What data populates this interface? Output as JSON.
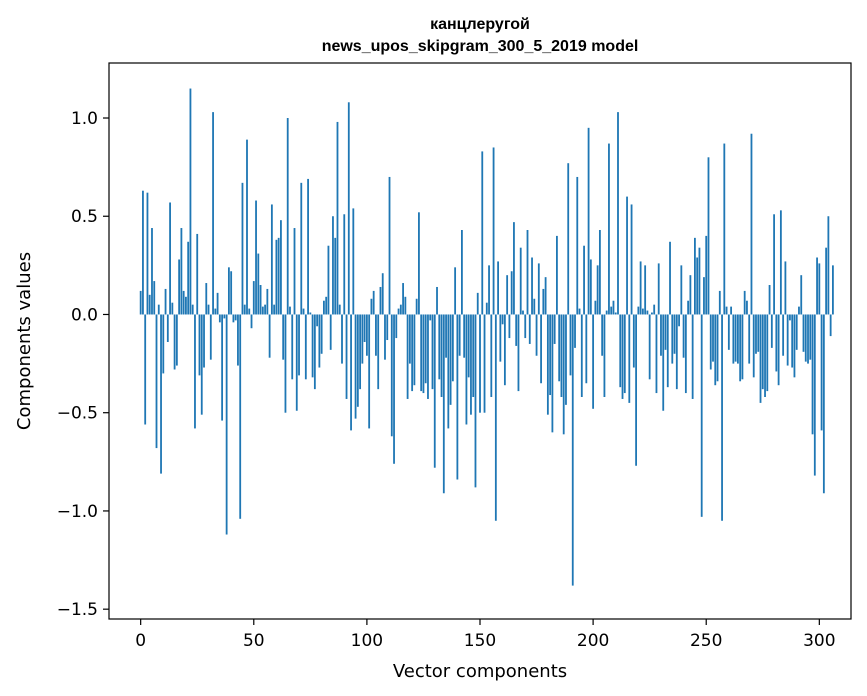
{
  "chart_data": {
    "type": "bar",
    "title": "канцлеругой",
    "subtitle": "news_upos_skipgram_300_5_2019 model",
    "xlabel": "Vector components",
    "ylabel": "Components values",
    "xlim": [
      -14,
      314
    ],
    "ylim": [
      -1.55,
      1.28
    ],
    "xticks": [
      0,
      50,
      100,
      150,
      200,
      250,
      300
    ],
    "yticks": [
      -1.5,
      -1.0,
      -0.5,
      0.0,
      0.5,
      1.0
    ],
    "ytick_labels": [
      "−1.5",
      "−1.0",
      "−0.5",
      "0.0",
      "0.5",
      "1.0"
    ],
    "grid": false,
    "bar_color": "#1f77b4",
    "values": [
      0.12,
      0.63,
      -0.56,
      0.62,
      0.1,
      0.44,
      0.17,
      -0.68,
      0.05,
      -0.81,
      -0.3,
      0.13,
      -0.14,
      0.57,
      0.06,
      -0.28,
      -0.26,
      0.28,
      0.44,
      0.12,
      0.09,
      0.37,
      1.15,
      0.05,
      -0.58,
      0.41,
      -0.31,
      -0.51,
      -0.27,
      0.16,
      0.05,
      -0.23,
      1.03,
      0.03,
      0.11,
      -0.04,
      -0.54,
      -0.02,
      -1.12,
      0.24,
      0.22,
      -0.04,
      -0.03,
      -0.26,
      -1.04,
      0.67,
      0.05,
      0.89,
      0.03,
      -0.07,
      0.17,
      0.58,
      0.31,
      0.15,
      0.04,
      0.05,
      0.13,
      -0.22,
      0.56,
      0.05,
      0.38,
      0.39,
      0.48,
      -0.23,
      -0.5,
      1.0,
      0.04,
      -0.33,
      0.44,
      -0.49,
      -0.31,
      0.67,
      0.03,
      -0.33,
      0.69,
      0.01,
      -0.32,
      -0.38,
      -0.06,
      -0.27,
      -0.2,
      0.07,
      0.09,
      0.35,
      -0.18,
      0.5,
      0.39,
      0.98,
      0.05,
      -0.25,
      0.51,
      -0.43,
      1.08,
      -0.59,
      0.54,
      -0.53,
      -0.47,
      -0.38,
      -0.25,
      -0.14,
      -0.21,
      -0.58,
      0.08,
      0.12,
      -0.21,
      -0.38,
      0.14,
      0.21,
      -0.23,
      -0.13,
      0.7,
      -0.62,
      -0.76,
      -0.12,
      0.03,
      0.05,
      0.16,
      0.09,
      -0.43,
      -0.25,
      -0.39,
      -0.36,
      0.08,
      0.52,
      -0.39,
      -0.4,
      -0.35,
      -0.43,
      -0.03,
      -0.38,
      -0.78,
      0.14,
      -0.33,
      -0.42,
      -0.91,
      -0.22,
      -0.58,
      -0.46,
      -0.34,
      0.24,
      -0.84,
      -0.21,
      0.43,
      -0.22,
      -0.56,
      -0.32,
      -0.51,
      -0.42,
      -0.88,
      0.11,
      -0.5,
      0.83,
      -0.5,
      0.06,
      0.25,
      -0.42,
      0.85,
      -1.05,
      0.27,
      -0.24,
      -0.05,
      -0.36,
      0.2,
      -0.12,
      0.22,
      0.47,
      -0.16,
      -0.39,
      0.34,
      0.02,
      -0.12,
      0.43,
      -0.15,
      0.29,
      0.08,
      -0.21,
      0.26,
      -0.35,
      0.13,
      0.19,
      -0.51,
      -0.41,
      -0.6,
      -0.15,
      0.4,
      -0.34,
      -0.42,
      -0.61,
      -0.46,
      0.77,
      -0.31,
      -1.38,
      -0.17,
      0.7,
      0.03,
      -0.42,
      0.35,
      -0.35,
      0.95,
      0.28,
      -0.48,
      0.07,
      0.25,
      0.43,
      -0.21,
      -0.42,
      0.02,
      0.87,
      0.04,
      0.07,
      0.01,
      1.03,
      -0.37,
      -0.43,
      -0.4,
      0.6,
      -0.45,
      0.56,
      -0.27,
      -0.77,
      0.04,
      0.27,
      0.03,
      0.25,
      0.02,
      -0.33,
      0.01,
      0.05,
      -0.4,
      0.26,
      -0.21,
      -0.49,
      -0.18,
      -0.37,
      0.37,
      -0.25,
      -0.2,
      -0.38,
      -0.06,
      0.25,
      -0.22,
      -0.4,
      0.07,
      0.2,
      -0.43,
      0.39,
      0.29,
      0.34,
      -1.03,
      0.19,
      0.4,
      0.8,
      -0.28,
      -0.24,
      -0.36,
      -0.34,
      0.12,
      -1.05,
      0.87,
      0.04,
      -0.18,
      0.04,
      -0.25,
      -0.24,
      -0.25,
      -0.34,
      -0.33,
      0.12,
      0.07,
      -0.25,
      0.92,
      -0.32,
      -0.2,
      -0.19,
      -0.45,
      -0.38,
      -0.42,
      -0.39,
      0.15,
      -0.17,
      0.51,
      -0.29,
      -0.36,
      0.53,
      -0.21,
      0.27,
      -0.26,
      -0.03,
      -0.27,
      -0.32,
      -0.18,
      0.04,
      0.2,
      -0.19,
      -0.24,
      -0.25,
      -0.23,
      -0.61,
      -0.82,
      0.29,
      0.26,
      -0.59,
      -0.91,
      0.34,
      0.5,
      -0.11,
      0.25
    ]
  }
}
